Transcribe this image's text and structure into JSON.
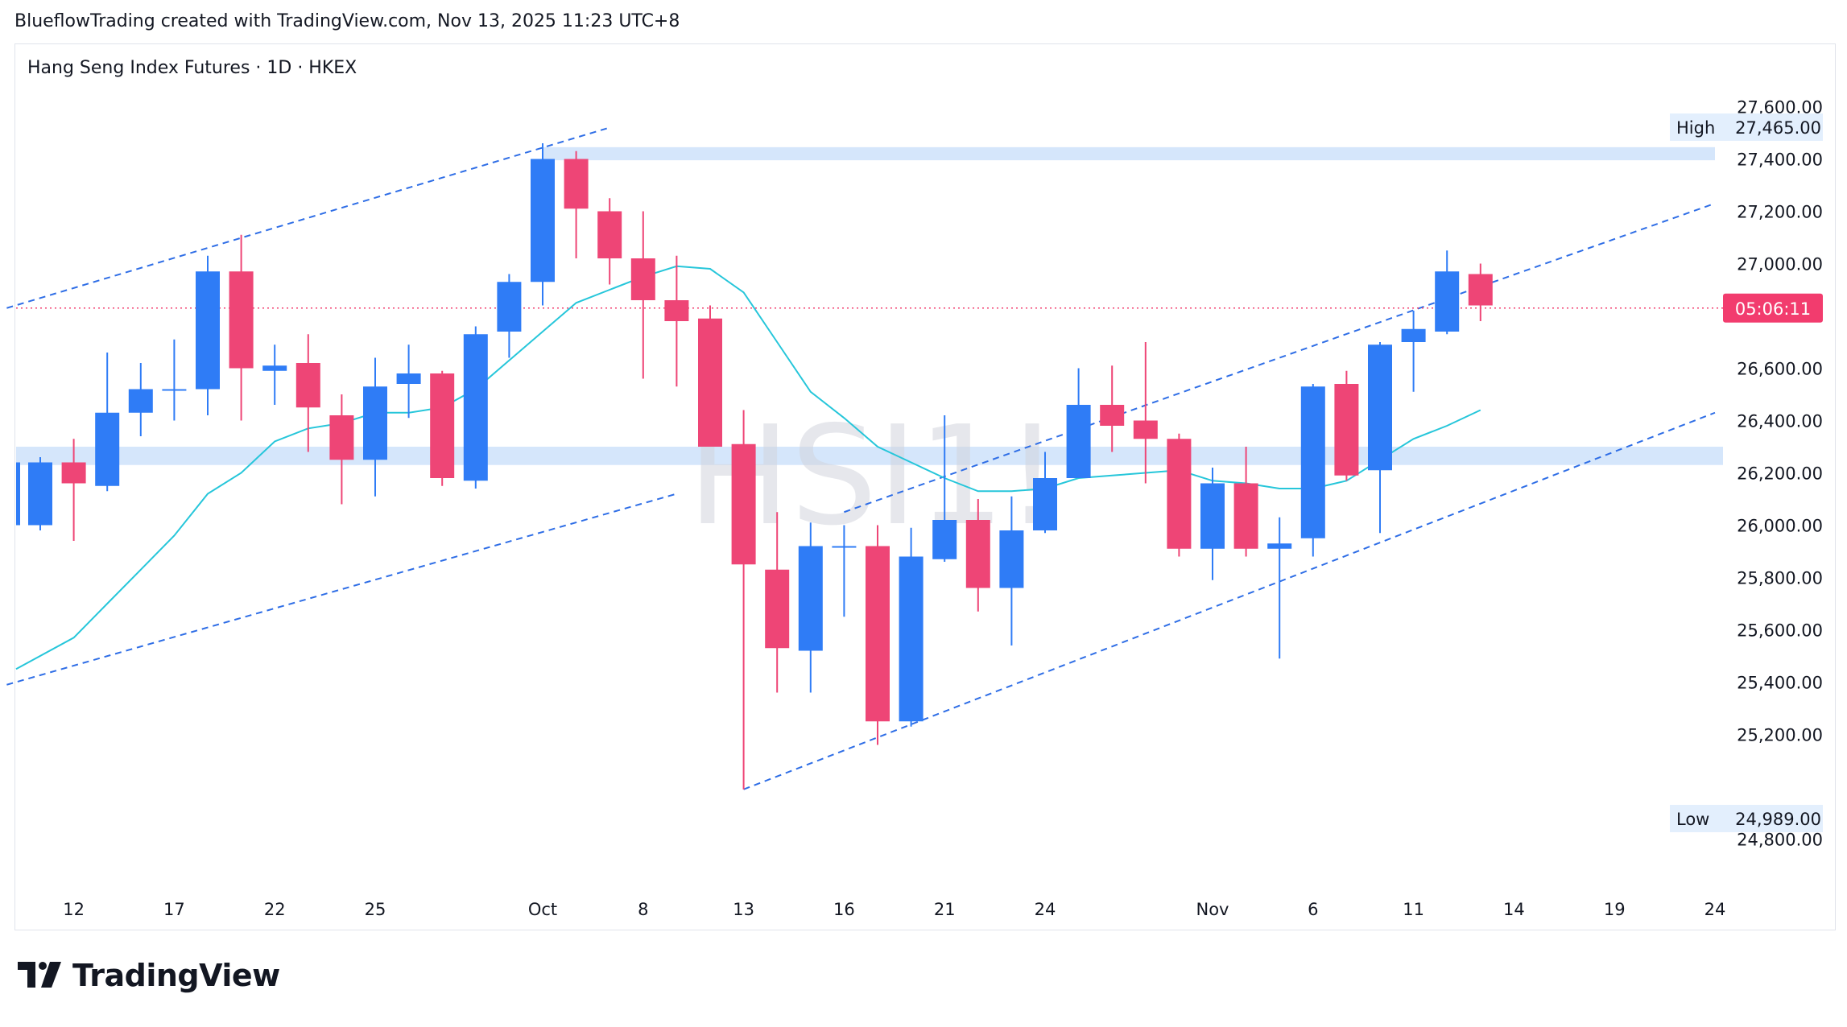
{
  "header": {
    "attribution": "BlueflowTrading created with TradingView.com, Nov 13, 2025 11:23 UTC+8"
  },
  "symbol_info": "Hang Seng Index Futures · 1D · HKEX",
  "watermark": "HSI1!",
  "brand": {
    "name": "TradingView",
    "logo_icon": "tradingview-logo-icon"
  },
  "colors": {
    "up": "#2f7cf6",
    "down": "#ee4576",
    "ma": "#26c6da",
    "channel": "#2f6ee6",
    "zone": "#d5e6fb",
    "countdown_bg": "#f23c6e",
    "current_line": "#f23c6e"
  },
  "chart_data": {
    "type": "candlestick",
    "title": "Hang Seng Index Futures · 1D · HKEX",
    "ylim": [
      24700,
      27700
    ],
    "y_ticks": [
      24800,
      25200,
      25400,
      25600,
      25800,
      26000,
      26200,
      26400,
      26600,
      27000,
      27200,
      27400,
      27600
    ],
    "y_tick_labels": [
      "24,800.00",
      "25,200.00",
      "25,400.00",
      "25,600.00",
      "25,800.00",
      "26,000.00",
      "26,200.00",
      "26,400.00",
      "26,600.00",
      "27,000.00",
      "27,200.00",
      "27,400.00",
      "27,600.00"
    ],
    "x_labels": [
      {
        "label": "12",
        "bar": 1
      },
      {
        "label": "17",
        "bar": 4
      },
      {
        "label": "22",
        "bar": 7
      },
      {
        "label": "25",
        "bar": 10
      },
      {
        "label": "Oct",
        "bar": 15
      },
      {
        "label": "8",
        "bar": 18
      },
      {
        "label": "13",
        "bar": 21
      },
      {
        "label": "16",
        "bar": 24
      },
      {
        "label": "21",
        "bar": 27
      },
      {
        "label": "24",
        "bar": 30
      },
      {
        "label": "Nov",
        "bar": 35
      },
      {
        "label": "6",
        "bar": 38
      },
      {
        "label": "11",
        "bar": 41
      },
      {
        "label": "14",
        "bar": 44
      },
      {
        "label": "19",
        "bar": 47
      },
      {
        "label": "24",
        "bar": 50
      }
    ],
    "candles": [
      {
        "o": 26000,
        "h": 26260,
        "l": 25980,
        "c": 26240
      },
      {
        "o": 26240,
        "h": 26330,
        "l": 25940,
        "c": 26160
      },
      {
        "o": 26150,
        "h": 26660,
        "l": 26130,
        "c": 26430
      },
      {
        "o": 26430,
        "h": 26620,
        "l": 26340,
        "c": 26520
      },
      {
        "o": 26520,
        "h": 26710,
        "l": 26400,
        "c": 26520
      },
      {
        "o": 26520,
        "h": 27030,
        "l": 26420,
        "c": 26970
      },
      {
        "o": 26970,
        "h": 27110,
        "l": 26400,
        "c": 26600
      },
      {
        "o": 26590,
        "h": 26690,
        "l": 26460,
        "c": 26610
      },
      {
        "o": 26620,
        "h": 26730,
        "l": 26280,
        "c": 26450
      },
      {
        "o": 26420,
        "h": 26500,
        "l": 26080,
        "c": 26250
      },
      {
        "o": 26250,
        "h": 26640,
        "l": 26110,
        "c": 26530
      },
      {
        "o": 26540,
        "h": 26690,
        "l": 26410,
        "c": 26580
      },
      {
        "o": 26580,
        "h": 26590,
        "l": 26150,
        "c": 26180
      },
      {
        "o": 26170,
        "h": 26760,
        "l": 26140,
        "c": 26730
      },
      {
        "o": 26740,
        "h": 26960,
        "l": 26640,
        "c": 26930
      },
      {
        "o": 26930,
        "h": 27460,
        "l": 26840,
        "c": 27400
      },
      {
        "o": 27400,
        "h": 27430,
        "l": 27020,
        "c": 27210
      },
      {
        "o": 27200,
        "h": 27250,
        "l": 26920,
        "c": 27020
      },
      {
        "o": 27020,
        "h": 27200,
        "l": 26560,
        "c": 26860
      },
      {
        "o": 26860,
        "h": 27030,
        "l": 26530,
        "c": 26780
      },
      {
        "o": 26790,
        "h": 26840,
        "l": 26300,
        "c": 26300
      },
      {
        "o": 26310,
        "h": 26440,
        "l": 24990,
        "c": 25850
      },
      {
        "o": 25830,
        "h": 26050,
        "l": 25360,
        "c": 25530
      },
      {
        "o": 25520,
        "h": 26010,
        "l": 25360,
        "c": 25920
      },
      {
        "o": 25920,
        "h": 26000,
        "l": 25650,
        "c": 25920
      },
      {
        "o": 25920,
        "h": 26000,
        "l": 25160,
        "c": 25250
      },
      {
        "o": 25250,
        "h": 25990,
        "l": 25230,
        "c": 25880
      },
      {
        "o": 25870,
        "h": 26420,
        "l": 25860,
        "c": 26020
      },
      {
        "o": 26020,
        "h": 26100,
        "l": 25670,
        "c": 25760
      },
      {
        "o": 25760,
        "h": 26110,
        "l": 25540,
        "c": 25980
      },
      {
        "o": 25980,
        "h": 26280,
        "l": 25970,
        "c": 26180
      },
      {
        "o": 26180,
        "h": 26600,
        "l": 26180,
        "c": 26460
      },
      {
        "o": 26460,
        "h": 26610,
        "l": 26280,
        "c": 26380
      },
      {
        "o": 26400,
        "h": 26700,
        "l": 26160,
        "c": 26330
      },
      {
        "o": 26330,
        "h": 26350,
        "l": 25880,
        "c": 25910
      },
      {
        "o": 25910,
        "h": 26220,
        "l": 25790,
        "c": 26160
      },
      {
        "o": 26160,
        "h": 26300,
        "l": 25880,
        "c": 25910
      },
      {
        "o": 25910,
        "h": 26030,
        "l": 25490,
        "c": 25930
      },
      {
        "o": 25950,
        "h": 26540,
        "l": 25880,
        "c": 26530
      },
      {
        "o": 26540,
        "h": 26590,
        "l": 26170,
        "c": 26190
      },
      {
        "o": 26210,
        "h": 26700,
        "l": 25970,
        "c": 26690
      },
      {
        "o": 26700,
        "h": 26820,
        "l": 26510,
        "c": 26750
      },
      {
        "o": 26740,
        "h": 27050,
        "l": 26730,
        "c": 26970
      },
      {
        "o": 26960,
        "h": 27000,
        "l": 26780,
        "c": 26840
      }
    ],
    "ma_series": {
      "name": "moving average",
      "values": [
        25450,
        25570,
        25700,
        25830,
        25960,
        26120,
        26200,
        26320,
        26370,
        26390,
        26430,
        26430,
        26450,
        26520,
        26630,
        26740,
        26850,
        26900,
        26950,
        26990,
        26980,
        26890,
        26700,
        26510,
        26410,
        26300,
        26240,
        26180,
        26130,
        26130,
        26140,
        26180,
        26190,
        26200,
        26210,
        26170,
        26160,
        26140,
        26140,
        26170,
        26250,
        26330,
        26380,
        26440
      ],
      "start_bar": -1
    },
    "high_label": "High",
    "high_value": "27,465.00",
    "low_label": "Low",
    "low_value": "24,989.00",
    "current_price": 26830,
    "countdown": "05:06:11",
    "channel_lines": [
      {
        "x1": -1,
        "y1": 26830,
        "x2": 17,
        "y2": 27520
      },
      {
        "x1": -1,
        "y1": 25390,
        "x2": 19,
        "y2": 26120
      },
      {
        "x1": 21,
        "y1": 24990,
        "x2": 50,
        "y2": 26430
      },
      {
        "x1": 24,
        "y1": 26050,
        "x2": 50,
        "y2": 27230
      }
    ],
    "zones": [
      {
        "from_bar": 15,
        "to_bar": 50,
        "y_low": 27395,
        "y_high": 27445
      },
      {
        "from_bar": -1,
        "to_bar": 51,
        "y_low": 26230,
        "y_high": 26300
      }
    ]
  }
}
